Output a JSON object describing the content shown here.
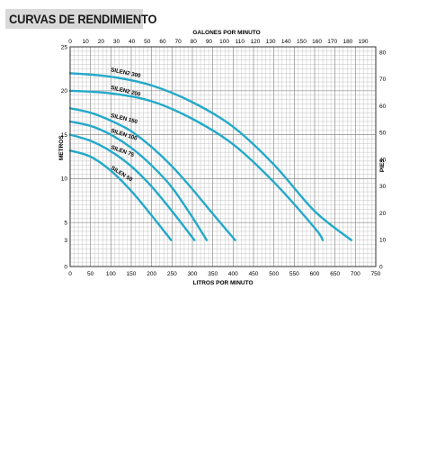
{
  "chart_data": {
    "type": "line",
    "title": "CURVAS DE RENDIMIENTO",
    "xlabel": "LITROS POR MINUTO",
    "x2label": "GALONES POR MINUTO",
    "ylabel": "METROS",
    "y2label": "PIES",
    "xlim": [
      0,
      750
    ],
    "ylim": [
      0,
      25
    ],
    "x_ticks": [
      0,
      50,
      100,
      150,
      200,
      250,
      300,
      350,
      400,
      450,
      500,
      550,
      600,
      650,
      700,
      750
    ],
    "x2_ticks": [
      0,
      10,
      20,
      30,
      40,
      50,
      60,
      70,
      80,
      90,
      100,
      110,
      120,
      130,
      140,
      150,
      160,
      170,
      180,
      190
    ],
    "y_ticks": [
      0,
      3,
      5,
      10,
      15,
      20,
      25
    ],
    "y2_ticks": [
      0,
      10,
      20,
      30,
      40,
      50,
      60,
      70,
      80
    ],
    "grid": true,
    "series": [
      {
        "name": "SILEN2 300",
        "x": [
          0,
          100,
          200,
          300,
          400,
          500,
          600,
          690
        ],
        "y": [
          22.0,
          21.6,
          20.6,
          18.7,
          15.9,
          11.6,
          6.3,
          3.0
        ]
      },
      {
        "name": "SILEN2 200",
        "x": [
          0,
          100,
          200,
          300,
          400,
          500,
          600,
          620
        ],
        "y": [
          20.0,
          19.7,
          18.8,
          16.8,
          13.9,
          9.6,
          4.4,
          3.0
        ]
      },
      {
        "name": "SILEN 150",
        "x": [
          0,
          50,
          100,
          150,
          200,
          250,
          300,
          350,
          405
        ],
        "y": [
          18.0,
          17.5,
          16.6,
          15.4,
          13.6,
          11.4,
          8.8,
          6.0,
          3.0
        ]
      },
      {
        "name": "SILEN 100",
        "x": [
          0,
          50,
          100,
          150,
          200,
          250,
          300,
          335
        ],
        "y": [
          16.5,
          16.0,
          15.0,
          13.5,
          11.5,
          9.0,
          5.6,
          3.0
        ]
      },
      {
        "name": "SILEN 75",
        "x": [
          0,
          50,
          100,
          150,
          200,
          250,
          305
        ],
        "y": [
          15.0,
          14.3,
          13.1,
          11.4,
          9.1,
          6.3,
          3.0
        ]
      },
      {
        "name": "SILEN 50",
        "x": [
          0,
          50,
          100,
          150,
          200,
          248
        ],
        "y": [
          13.2,
          12.5,
          10.9,
          8.6,
          5.8,
          3.0
        ]
      }
    ],
    "line_color": "#23a9c9"
  }
}
